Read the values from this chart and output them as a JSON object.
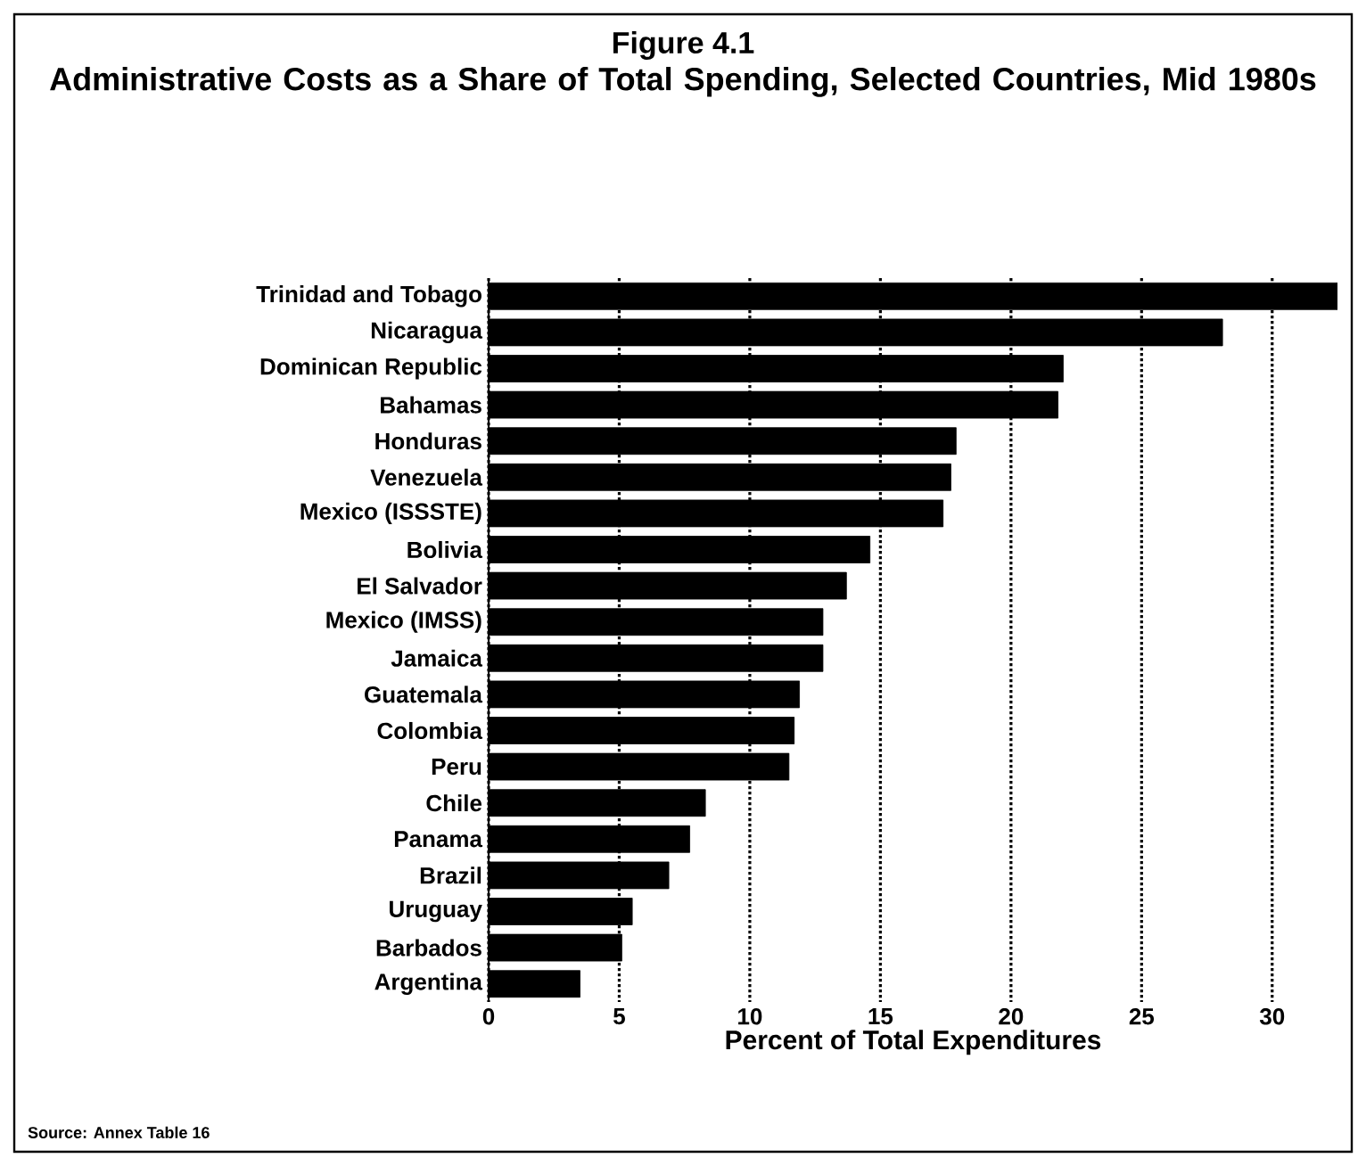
{
  "chart_data": {
    "type": "bar",
    "orientation": "horizontal",
    "title": "Figure 4.1",
    "subtitle": "Administrative Costs as a Share of Total Spending, Selected Countries, Mid 1980s",
    "categories": [
      "Trinidad and Tobago",
      "Nicaragua",
      "Dominican Republic",
      "Bahamas",
      "Honduras",
      "Venezuela",
      "Mexico (ISSSTE)",
      "Bolivia",
      "El Salvador",
      "Mexico (IMSS)",
      "Jamaica",
      "Guatemala",
      "Colombia",
      "Peru",
      "Chile",
      "Panama",
      "Brazil",
      "Uruguay",
      "Barbados",
      "Argentina"
    ],
    "values": [
      32.5,
      28.1,
      22.0,
      21.8,
      17.9,
      17.7,
      17.4,
      14.6,
      13.7,
      12.8,
      12.8,
      11.9,
      11.7,
      11.5,
      8.3,
      7.7,
      6.9,
      5.5,
      5.1,
      3.5
    ],
    "color": "#000000",
    "xlim": [
      0,
      32.5
    ],
    "xticks": [
      0,
      5,
      10,
      15,
      20,
      25,
      30
    ],
    "grid": "x",
    "xlabel": "Percent of Total Expenditures",
    "annotations": [
      "Source:  Annex Table 16"
    ]
  }
}
